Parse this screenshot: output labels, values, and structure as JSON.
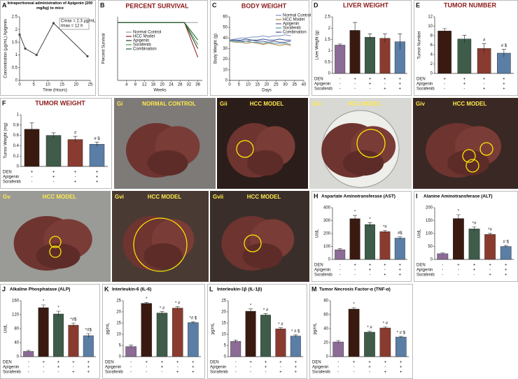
{
  "chart_data": [
    {
      "type": "line",
      "panel": "A",
      "title": "Intraperitoneal administration of Apigenin (200 mg/kg) to mice",
      "title_color": "#000000",
      "x": [
        0,
        2,
        6,
        12,
        24
      ],
      "values": [
        1.8,
        1.25,
        1.0,
        2.25,
        0.95
      ],
      "color": "#444444",
      "xlim": [
        0,
        25
      ],
      "xticks": [
        0,
        5,
        10,
        15,
        20,
        25
      ],
      "ylim": [
        0,
        2.5
      ],
      "yticks": [
        0,
        0.5,
        1,
        1.5,
        2,
        2.5
      ],
      "xlabel": "Time (Hours)",
      "ylabel": "Concentration (µg/mL) Apigenin",
      "annotations": [
        "Cmax = 2.3 µg/mL",
        "tmax = 12 h"
      ]
    },
    {
      "type": "line",
      "panel": "B",
      "title": "PERCENT SURVIVAL",
      "title_color": "#8b1a1a",
      "x": [
        0,
        30,
        36
      ],
      "xlim": [
        0,
        38
      ],
      "xticks": [
        4,
        8,
        12,
        16,
        20,
        24,
        28,
        32,
        36
      ],
      "ylim": [
        0,
        110
      ],
      "xlabel": "Weeks",
      "ylabel": "Percent Survival",
      "series": [
        {
          "name": "Normal Control",
          "color": "#9a9a9a",
          "values": [
            100,
            100,
            100
          ]
        },
        {
          "name": "HCC Model",
          "color": "#8b1a1a",
          "values": [
            100,
            100,
            40
          ]
        },
        {
          "name": "Apigenin",
          "color": "#333333",
          "values": [
            100,
            100,
            55
          ]
        },
        {
          "name": "Sorafenib",
          "color": "#3aa040",
          "values": [
            100,
            100,
            62
          ]
        },
        {
          "name": "Combination",
          "color": "#1e5e2e",
          "values": [
            100,
            100,
            70
          ]
        }
      ]
    },
    {
      "type": "line",
      "panel": "C",
      "title": "BODY WEIGHT",
      "title_color": "#8b1a1a",
      "x": [
        0,
        3,
        6,
        9,
        12,
        15,
        18,
        21,
        24,
        27,
        30,
        33
      ],
      "xlim": [
        0,
        40
      ],
      "xticks": [
        0,
        5,
        10,
        15,
        20,
        25,
        30,
        35,
        40
      ],
      "ylim": [
        0,
        60
      ],
      "yticks": [
        0,
        10,
        20,
        30,
        40,
        50,
        60
      ],
      "xlabel": "Days",
      "ylabel": "Body Weight (g)",
      "series": [
        {
          "name": "Normal Control",
          "color": "#7b8fc0",
          "values": [
            38,
            39,
            40,
            40,
            41,
            41,
            42,
            41,
            42,
            42,
            43,
            42
          ]
        },
        {
          "name": "HCC Model",
          "color": "#b07a3a",
          "values": [
            37,
            36,
            36,
            35,
            36,
            35,
            34,
            35,
            34,
            33,
            34,
            33
          ]
        },
        {
          "name": "Apigenin",
          "color": "#6a5a9a",
          "values": [
            38,
            38,
            37,
            37,
            38,
            37,
            37,
            36,
            37,
            36,
            36,
            37
          ]
        },
        {
          "name": "Sorafenib",
          "color": "#4a9a9a",
          "values": [
            37,
            37,
            36,
            37,
            36,
            36,
            35,
            36,
            35,
            35,
            35,
            34
          ]
        },
        {
          "name": "Combination",
          "color": "#2f4f8f",
          "values": [
            38,
            38,
            38,
            39,
            38,
            38,
            39,
            38,
            38,
            39,
            38,
            38
          ]
        }
      ]
    },
    {
      "type": "bar",
      "panel": "D",
      "title": "LIVER WEIGHT",
      "title_color": "#8b1a1a",
      "ylabel": "Liver Weight (g)",
      "values": [
        1.25,
        1.9,
        1.6,
        1.55,
        1.4
      ],
      "errors": [
        0.05,
        0.35,
        0.15,
        0.2,
        0.35
      ],
      "colors": [
        "#8c6b96",
        "#3a1a10",
        "#3e5c49",
        "#8a3b2f",
        "#5a7ea6"
      ],
      "ylim": [
        0,
        2.5
      ],
      "yticks": [
        0,
        0.5,
        1,
        1.5,
        2,
        2.5
      ],
      "annotations": [
        null,
        null,
        null,
        null,
        null
      ],
      "treatments": [
        {
          "name": "DEN",
          "signs": [
            "-",
            "+",
            "+",
            "+",
            "+"
          ]
        },
        {
          "name": "Apigenin",
          "signs": [
            "-",
            "-",
            "+",
            "-",
            "+"
          ]
        },
        {
          "name": "Sorafenib",
          "signs": [
            "-",
            "-",
            "-",
            "+",
            "+"
          ]
        }
      ]
    },
    {
      "type": "bar",
      "panel": "E",
      "title": "TUMOR NUMBER",
      "title_color": "#8b1a1a",
      "ylabel": "Tumor Number",
      "values": [
        9,
        7.3,
        5.3,
        4.3
      ],
      "errors": [
        0.5,
        0.8,
        1,
        0.8
      ],
      "colors": [
        "#3a1a10",
        "#3e5c49",
        "#8a3b2f",
        "#5a7ea6"
      ],
      "ylim": [
        0,
        12
      ],
      "yticks": [
        0,
        2,
        4,
        6,
        8,
        10,
        12
      ],
      "annotations": [
        null,
        null,
        "#",
        "# $"
      ],
      "treatments": [
        {
          "name": "DEN",
          "signs": [
            "+",
            "+",
            "+",
            "+"
          ]
        },
        {
          "name": "Apigenin",
          "signs": [
            "-",
            "+",
            "-",
            "+"
          ]
        },
        {
          "name": "Sorafenib",
          "signs": [
            "-",
            "-",
            "+",
            "+"
          ]
        }
      ]
    },
    {
      "type": "bar",
      "panel": "F",
      "title": "TUMOR WEIGHT",
      "title_color": "#8b1a1a",
      "ylabel": "Tumor Weight (mg)",
      "values": [
        0.72,
        0.6,
        0.52,
        0.43
      ],
      "errors": [
        0.12,
        0.05,
        0.06,
        0.04
      ],
      "colors": [
        "#3a1a10",
        "#3e5c49",
        "#8a3b2f",
        "#5a7ea6"
      ],
      "ylim": [
        0,
        1
      ],
      "yticks": [
        0,
        0.2,
        0.4,
        0.6,
        0.8,
        1
      ],
      "annotations": [
        null,
        null,
        "#",
        "# $"
      ],
      "treatments": [
        {
          "name": "DEN",
          "signs": [
            "+",
            "+",
            "+",
            "+"
          ]
        },
        {
          "name": "Apigenin",
          "signs": [
            "-",
            "+",
            "-",
            "+"
          ]
        },
        {
          "name": "Sorafenib",
          "signs": [
            "-",
            "-",
            "+",
            "+"
          ]
        }
      ]
    },
    {
      "type": "bar",
      "panel": "H",
      "title": "Aspartate Aminotransferase (AST)",
      "title_color": "#000000",
      "ylabel": "U/dL",
      "values": [
        75,
        315,
        270,
        215,
        165
      ],
      "errors": [
        8,
        25,
        15,
        10,
        10
      ],
      "colors": [
        "#8c6b96",
        "#3a1a10",
        "#3e5c49",
        "#8a3b2f",
        "#5a7ea6"
      ],
      "ylim": [
        0,
        400
      ],
      "yticks": [
        0,
        100,
        200,
        300,
        400
      ],
      "annotations": [
        null,
        "*",
        "*",
        "*#",
        "#$"
      ],
      "treatments": [
        {
          "name": "DEN",
          "signs": [
            "-",
            "+",
            "+",
            "+",
            "+"
          ]
        },
        {
          "name": "Apigenin",
          "signs": [
            "-",
            "-",
            "+",
            "-",
            "+"
          ]
        },
        {
          "name": "Sorafenib",
          "signs": [
            "-",
            "-",
            "-",
            "+",
            "+"
          ]
        }
      ]
    },
    {
      "type": "bar",
      "panel": "I",
      "title": "Alanine Aminotransferase (ALT)",
      "title_color": "#000000",
      "ylabel": "U/dL",
      "values": [
        22,
        158,
        118,
        97,
        50
      ],
      "errors": [
        3,
        15,
        8,
        5,
        4
      ],
      "colors": [
        "#8c6b96",
        "#3a1a10",
        "#3e5c49",
        "#8a3b2f",
        "#5a7ea6"
      ],
      "ylim": [
        0,
        200
      ],
      "yticks": [
        0,
        50,
        100,
        150,
        200
      ],
      "annotations": [
        null,
        "*",
        "*#",
        "*#",
        "# $"
      ],
      "treatments": [
        {
          "name": "DEN",
          "signs": [
            "-",
            "+",
            "+",
            "+",
            "+"
          ]
        },
        {
          "name": "Apigenin",
          "signs": [
            "-",
            "-",
            "+",
            "-",
            "+"
          ]
        },
        {
          "name": "Sorafenib",
          "signs": [
            "-",
            "-",
            "-",
            "+",
            "+"
          ]
        }
      ]
    },
    {
      "type": "bar",
      "panel": "J",
      "title": "Alkaline Phosphatase (ALP)",
      "title_color": "#000000",
      "ylabel": "U/dL",
      "values": [
        15,
        140,
        122,
        90,
        60
      ],
      "errors": [
        3,
        8,
        8,
        6,
        6
      ],
      "colors": [
        "#8c6b96",
        "#3a1a10",
        "#3e5c49",
        "#8a3b2f",
        "#5a7ea6"
      ],
      "ylim": [
        0,
        160
      ],
      "yticks": [
        0,
        40,
        80,
        120,
        160
      ],
      "annotations": [
        null,
        "*",
        "*",
        "*#$",
        "*#$"
      ],
      "treatments": [
        {
          "name": "DEN",
          "signs": [
            "-",
            "+",
            "+",
            "+",
            "+"
          ]
        },
        {
          "name": "Apigenin",
          "signs": [
            "-",
            "-",
            "+",
            "-",
            "+"
          ]
        },
        {
          "name": "Sorafenib",
          "signs": [
            "-",
            "-",
            "-",
            "+",
            "+"
          ]
        }
      ]
    },
    {
      "type": "bar",
      "panel": "K",
      "title": "Interleukin-6 (IL-6)",
      "title_color": "#000000",
      "ylabel": "pg/mL",
      "values": [
        4.5,
        23.8,
        19.5,
        21.7,
        15.2
      ],
      "errors": [
        0.6,
        0.5,
        0.6,
        0.6,
        0.4
      ],
      "colors": [
        "#8c6b96",
        "#3a1a10",
        "#3e5c49",
        "#8a3b2f",
        "#5a7ea6"
      ],
      "ylim": [
        0,
        25
      ],
      "yticks": [
        0,
        5,
        10,
        15,
        20,
        25
      ],
      "annotations": [
        null,
        "*",
        "* #",
        "* #",
        "*# $"
      ],
      "treatments": [
        {
          "name": "DEN",
          "signs": [
            "-",
            "+",
            "+",
            "+",
            "+"
          ]
        },
        {
          "name": "Apigenin",
          "signs": [
            "-",
            "-",
            "+",
            "-",
            "+"
          ]
        },
        {
          "name": "Sorafenib",
          "signs": [
            "-",
            "-",
            "-",
            "+",
            "+"
          ]
        }
      ]
    },
    {
      "type": "bar",
      "panel": "L",
      "title": "Interleukin-1β (IL-1β)",
      "title_color": "#000000",
      "ylabel": "pg/mL",
      "values": [
        6.8,
        20.3,
        18.6,
        12.4,
        9.2
      ],
      "errors": [
        0.6,
        1,
        0.6,
        0.5,
        0.5
      ],
      "colors": [
        "#8c6b96",
        "#3a1a10",
        "#3e5c49",
        "#8a3b2f",
        "#5a7ea6"
      ],
      "ylim": [
        0,
        25
      ],
      "yticks": [
        0,
        5,
        10,
        15,
        20,
        25
      ],
      "annotations": [
        null,
        "*",
        "* #",
        "* #",
        "* # $"
      ],
      "treatments": [
        {
          "name": "DEN",
          "signs": [
            "-",
            "+",
            "+",
            "+",
            "+"
          ]
        },
        {
          "name": "Apigenin",
          "signs": [
            "-",
            "-",
            "+",
            "-",
            "+"
          ]
        },
        {
          "name": "Sorafenib",
          "signs": [
            "-",
            "-",
            "-",
            "+",
            "+"
          ]
        }
      ]
    },
    {
      "type": "bar",
      "panel": "M",
      "title": "Tumor Necrosis Factor-α (TNF-α)",
      "title_color": "#000000",
      "ylabel": "pg/mL",
      "values": [
        21,
        68,
        35,
        41,
        28
      ],
      "errors": [
        2,
        2,
        1.5,
        1.5,
        1
      ],
      "colors": [
        "#8c6b96",
        "#3a1a10",
        "#3e5c49",
        "#8a3b2f",
        "#5a7ea6"
      ],
      "ylim": [
        0,
        80
      ],
      "yticks": [
        0,
        20,
        40,
        60,
        80
      ],
      "annotations": [
        null,
        "*",
        "* #",
        "* #",
        "* # $"
      ],
      "treatments": [
        {
          "name": "DEN",
          "signs": [
            "-",
            "+",
            "+",
            "+",
            "+"
          ]
        },
        {
          "name": "Apigenin",
          "signs": [
            "-",
            "-",
            "+",
            "-",
            "+"
          ]
        },
        {
          "name": "Sorafenib",
          "signs": [
            "-",
            "-",
            "-",
            "+",
            "+"
          ]
        }
      ]
    }
  ],
  "photo_panels": [
    {
      "panel": "Gi",
      "title": "NORMAL CONTROL"
    },
    {
      "panel": "Gii",
      "title": "HCC MODEL"
    },
    {
      "panel": "Giii",
      "title": "HCC MODEL"
    },
    {
      "panel": "Giv",
      "title": "HCC MODEL"
    },
    {
      "panel": "Gv",
      "title": "HCC MODEL"
    },
    {
      "panel": "Gvi",
      "title": "HCC MODEL"
    },
    {
      "panel": "Gvii",
      "title": "HCC MODEL"
    }
  ]
}
